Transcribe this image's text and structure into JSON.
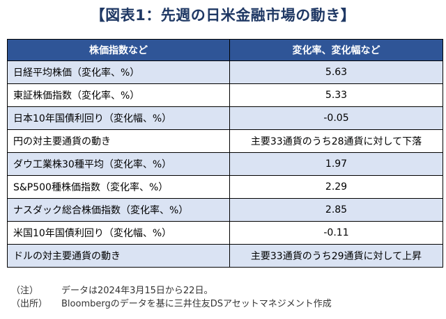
{
  "title": "【図表1：先週の日米金融市場の動き】",
  "table": {
    "headers": [
      "株価指数など",
      "変化率、変化幅など"
    ],
    "rows": [
      {
        "label": "日経平均株価（変化率、%）",
        "value": "5.63"
      },
      {
        "label": "東証株価指数（変化率、%）",
        "value": "5.33"
      },
      {
        "label": "日本10年国債利回り（変化幅、%）",
        "value": "-0.05"
      },
      {
        "label": "円の対主要通貨の動き",
        "value": "主要33通貨のうち28通貨に対して下落"
      },
      {
        "label": "ダウ工業株30種平均（変化率、%）",
        "value": "1.97"
      },
      {
        "label": "S&P500種株価指数（変化率、%）",
        "value": "2.29"
      },
      {
        "label": "ナスダック総合株価指数（変化率、%）",
        "value": "2.85"
      },
      {
        "label": "米国10年国債利回り（変化幅、%）",
        "value": "-0.11"
      },
      {
        "label": "ドルの対主要通貨の動き",
        "value": "主要33通貨のうち29通貨に対して上昇"
      }
    ]
  },
  "notes": [
    {
      "label": "（注）",
      "text": "データは2024年3月15日から22日。"
    },
    {
      "label": "（出所）",
      "text": "Bloombergのデータを基に三井住友DSアセットマネジメント作成"
    }
  ],
  "colors": {
    "header_bg": "#2f5597",
    "band_bg": "#dae3f3",
    "title": "#1f3864"
  }
}
